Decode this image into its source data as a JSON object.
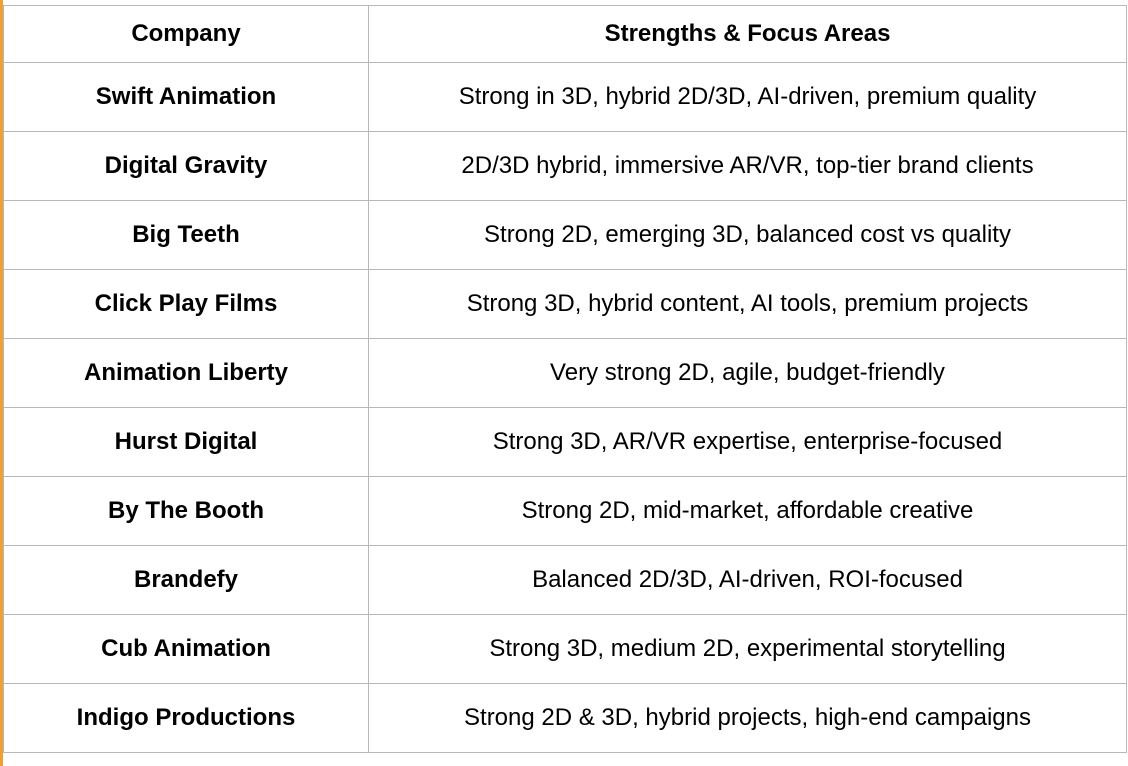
{
  "table": {
    "headers": [
      "Company",
      "Strengths & Focus Areas"
    ],
    "rows": [
      {
        "company": "Swift Animation",
        "strengths": "Strong in 3D, hybrid 2D/3D, AI-driven, premium quality"
      },
      {
        "company": "Digital Gravity",
        "strengths": "2D/3D hybrid, immersive AR/VR, top-tier brand clients"
      },
      {
        "company": "Big Teeth",
        "strengths": "Strong 2D, emerging 3D, balanced cost vs quality"
      },
      {
        "company": "Click Play Films",
        "strengths": "Strong 3D, hybrid content, AI tools, premium projects"
      },
      {
        "company": "Animation Liberty",
        "strengths": "Very strong 2D, agile, budget-friendly"
      },
      {
        "company": "Hurst Digital",
        "strengths": "Strong 3D, AR/VR expertise, enterprise-focused"
      },
      {
        "company": "By The Booth",
        "strengths": "Strong 2D, mid-market, affordable creative"
      },
      {
        "company": "Brandefy",
        "strengths": "Balanced 2D/3D, AI-driven, ROI-focused"
      },
      {
        "company": "Cub Animation",
        "strengths": "Strong 3D, medium 2D, experimental storytelling"
      },
      {
        "company": "Indigo Productions",
        "strengths": "Strong 2D & 3D, hybrid projects, high-end campaigns"
      }
    ]
  },
  "colors": {
    "accent": "#f0a030",
    "border": "#b8b8b8",
    "text": "#000000",
    "background": "#ffffff"
  }
}
